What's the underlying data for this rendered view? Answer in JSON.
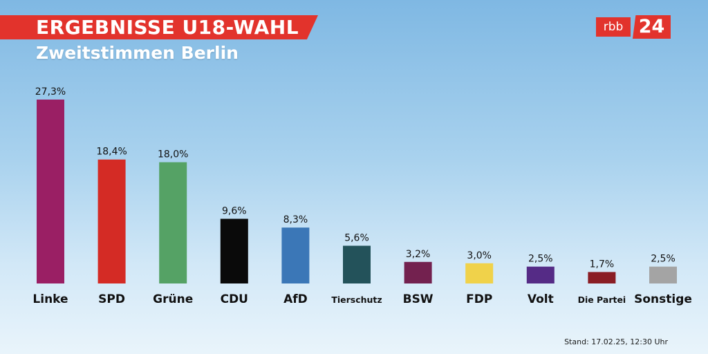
{
  "header": {
    "title": "ERGEBNISSE U18-WAHL",
    "subtitle": "Zweitstimmen Berlin"
  },
  "logo": {
    "brand": "rbb",
    "number": "24"
  },
  "footer": {
    "stand": "Stand: 17.02.25, 12:30 Uhr"
  },
  "chart_data": {
    "type": "bar",
    "title": "ERGEBNISSE U18-WAHL",
    "subtitle": "Zweitstimmen Berlin",
    "categories": [
      "Linke",
      "SPD",
      "Grüne",
      "CDU",
      "AfD",
      "Tierschutz",
      "BSW",
      "FDP",
      "Volt",
      "Die Partei",
      "Sonstige"
    ],
    "values": [
      27.3,
      18.4,
      18.0,
      9.6,
      8.3,
      5.6,
      3.2,
      3.0,
      2.5,
      1.7,
      2.5
    ],
    "value_labels": [
      "27,3%",
      "18,4%",
      "18,0%",
      "9,6%",
      "8,3%",
      "5,6%",
      "3,2%",
      "3,0%",
      "2,5%",
      "1,7%",
      "2,5%"
    ],
    "colors": [
      "#9a1f64",
      "#d42b25",
      "#55a265",
      "#0a0a0a",
      "#3b77b7",
      "#23525a",
      "#73214f",
      "#f0d24a",
      "#552b86",
      "#8a1d24",
      "#a4a4a4"
    ],
    "small_label_categories": [
      "Tierschutz",
      "Die Partei"
    ],
    "xlabel": "",
    "ylabel": "",
    "grid": false,
    "legend": "none"
  }
}
